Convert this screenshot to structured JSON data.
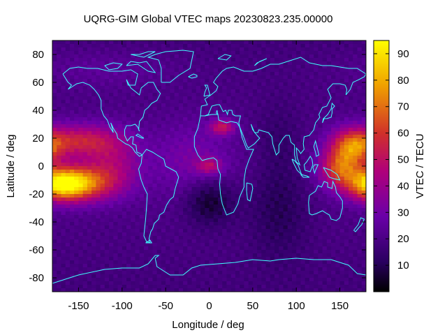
{
  "chart_data": {
    "type": "heatmap",
    "title": "UQRG-GIM Global VTEC maps 20230823.235.00000",
    "xlabel": "Longitude / deg",
    "ylabel": "Latitude / deg",
    "colorbar_label": "VTEC / TECU",
    "xlim": [
      -180,
      180
    ],
    "ylim": [
      -90,
      90
    ],
    "x_ticks": [
      -150,
      -100,
      -50,
      0,
      50,
      100,
      150
    ],
    "y_ticks": [
      -80,
      -60,
      -40,
      -20,
      0,
      20,
      40,
      60,
      80
    ],
    "colorbar_range": [
      0,
      95
    ],
    "colorbar_ticks": [
      10,
      20,
      30,
      40,
      50,
      60,
      70,
      80,
      90
    ],
    "colormap": [
      "#000000",
      "#2a0060",
      "#6a00a8",
      "#b0007a",
      "#d0302a",
      "#f0a000",
      "#ffff00"
    ],
    "grid": "2.5 x 5 deg cells",
    "coastline_color": "#40ffff",
    "features": [
      {
        "region": "equatorial anomaly Pacific east",
        "lon": -165,
        "lat": -12,
        "vtec": 88
      },
      {
        "region": "equatorial anomaly Pacific north crest",
        "lon": -150,
        "lat": 18,
        "vtec": 55
      },
      {
        "region": "western Pacific crest",
        "lon": 160,
        "lat": 15,
        "vtec": 70
      },
      {
        "region": "western Pacific south crest",
        "lon": 150,
        "lat": -2,
        "vtec": 62
      },
      {
        "region": "Saharan patch",
        "lon": 15,
        "lat": 28,
        "vtec": 55
      },
      {
        "region": "central Africa",
        "lon": 0,
        "lat": 0,
        "vtec": 50
      },
      {
        "region": "South Atlantic minimum",
        "lon": 0,
        "lat": -25,
        "vtec": 5
      },
      {
        "region": "Indian Ocean night",
        "lon": 80,
        "lat": -30,
        "vtec": 12
      }
    ],
    "background_vtec": 22
  }
}
